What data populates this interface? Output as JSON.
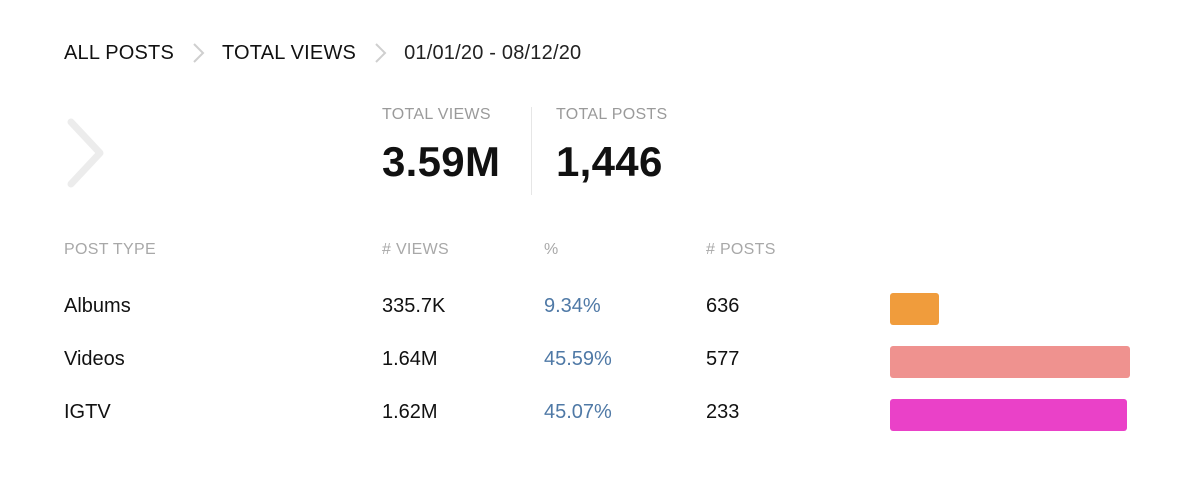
{
  "breadcrumb": {
    "items": [
      "ALL POSTS",
      "TOTAL VIEWS"
    ],
    "date_range": "01/01/20 - 08/12/20"
  },
  "summary": {
    "views_label": "TOTAL VIEWS",
    "views_value": "3.59M",
    "posts_label": "TOTAL POSTS",
    "posts_value": "1,446"
  },
  "table": {
    "headers": [
      "POST TYPE",
      "# VIEWS",
      "%",
      "# POSTS"
    ],
    "rows": [
      {
        "type": "Albums",
        "views": "335.7K",
        "percent": "9.34%",
        "posts": "636",
        "color": "#f09c3c",
        "share": 0.0934
      },
      {
        "type": "Videos",
        "views": "1.64M",
        "percent": "45.59%",
        "posts": "577",
        "color": "#ef928f",
        "share": 0.4559
      },
      {
        "type": "IGTV",
        "views": "1.62M",
        "percent": "45.07%",
        "posts": "233",
        "color": "#ea41c8",
        "share": 0.4507
      }
    ]
  },
  "colors": {
    "percent_text": "#4f79a6",
    "label_gray": "#9a9a9a",
    "chevron_gray": "#d8d8d8"
  }
}
